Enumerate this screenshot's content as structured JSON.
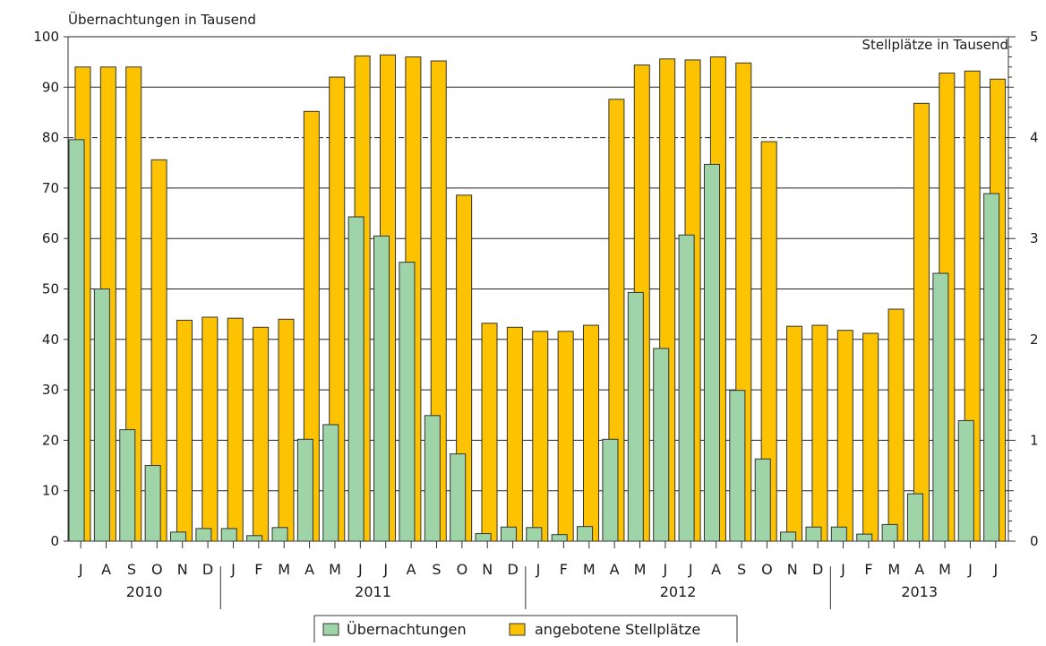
{
  "chart_data": {
    "type": "bar",
    "title": "",
    "ylabel_left": "Übernachtungen in Tausend",
    "ylabel_right": "Stellplätze in Tausend",
    "ylim_left": [
      0,
      100
    ],
    "ylim_right": [
      0,
      5
    ],
    "yticks_left": [
      "0",
      "10",
      "20",
      "30",
      "40",
      "50",
      "60",
      "70",
      "80",
      "90",
      "100"
    ],
    "yticks_right": [
      "0",
      "1",
      "2",
      "3",
      "4",
      "5"
    ],
    "categories": [
      "J",
      "A",
      "S",
      "O",
      "N",
      "D",
      "J",
      "F",
      "M",
      "A",
      "M",
      "J",
      "J",
      "A",
      "S",
      "O",
      "N",
      "D",
      "J",
      "F",
      "M",
      "A",
      "M",
      "J",
      "J",
      "A",
      "S",
      "O",
      "N",
      "D",
      "J",
      "F",
      "M",
      "A",
      "M",
      "J",
      "J"
    ],
    "year_groups": [
      {
        "label": "2010",
        "start": 0,
        "end": 5
      },
      {
        "label": "2011",
        "start": 6,
        "end": 17
      },
      {
        "label": "2012",
        "start": 18,
        "end": 29
      },
      {
        "label": "2013",
        "start": 30,
        "end": 36
      }
    ],
    "series": [
      {
        "name": "Übernachtungen",
        "axis": "left",
        "color": "#9fd3a8",
        "values": [
          79.6,
          50.0,
          22.1,
          15.0,
          1.8,
          2.5,
          2.5,
          1.1,
          2.7,
          20.2,
          23.1,
          64.3,
          60.5,
          55.3,
          24.9,
          17.3,
          1.5,
          2.8,
          2.7,
          1.3,
          2.9,
          20.2,
          49.3,
          38.2,
          60.7,
          74.7,
          29.9,
          16.3,
          1.8,
          2.8,
          2.8,
          1.4,
          3.3,
          9.4,
          53.1,
          23.9,
          68.9
        ]
      },
      {
        "name": "angebotene Stellplätze",
        "axis": "right",
        "color": "#fdc300",
        "values": [
          4.7,
          4.7,
          4.7,
          3.78,
          2.19,
          2.22,
          2.21,
          2.12,
          2.2,
          4.26,
          4.6,
          4.81,
          4.82,
          4.8,
          4.76,
          3.43,
          2.16,
          2.12,
          2.08,
          2.08,
          2.14,
          4.38,
          4.72,
          4.78,
          4.77,
          4.8,
          4.74,
          3.96,
          2.13,
          2.14,
          2.09,
          2.06,
          2.3,
          4.34,
          4.64,
          4.66,
          4.58
        ]
      }
    ],
    "grid": true,
    "legend": "bottom-center"
  },
  "colors": {
    "green": "#9fd3a8",
    "yellow": "#fdc300",
    "outline": "#333333",
    "grid": "#222222"
  }
}
